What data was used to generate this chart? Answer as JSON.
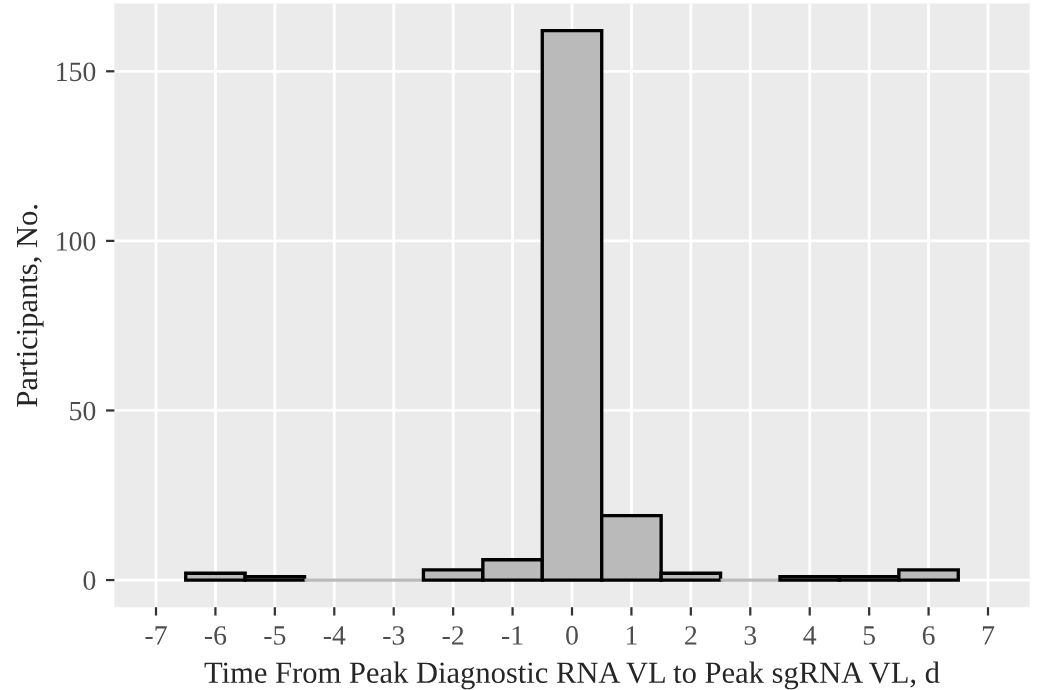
{
  "chart_data": {
    "type": "histogram",
    "xlabel": "Time From Peak Diagnostic RNA VL to Peak sgRNA VL, d",
    "ylabel": "Participants, No.",
    "bins": [
      -6.5,
      -5.5,
      -4.5,
      -3.5,
      -2.5,
      -1.5,
      -0.5,
      0.5,
      1.5,
      2.5,
      3.5,
      4.5,
      5.5,
      6.5
    ],
    "values": [
      2,
      1,
      0,
      0,
      3,
      6,
      162,
      19,
      2,
      0,
      1,
      1,
      3
    ],
    "color": "#bababa",
    "xlim": [
      -7.7,
      7.7
    ],
    "ylim": [
      -8,
      170
    ],
    "xticks": [
      -7,
      -6,
      -5,
      -4,
      -3,
      -2,
      -1,
      0,
      1,
      2,
      3,
      4,
      5,
      6,
      7
    ],
    "yticks": [
      0,
      50,
      100,
      150
    ],
    "grid": true
  }
}
